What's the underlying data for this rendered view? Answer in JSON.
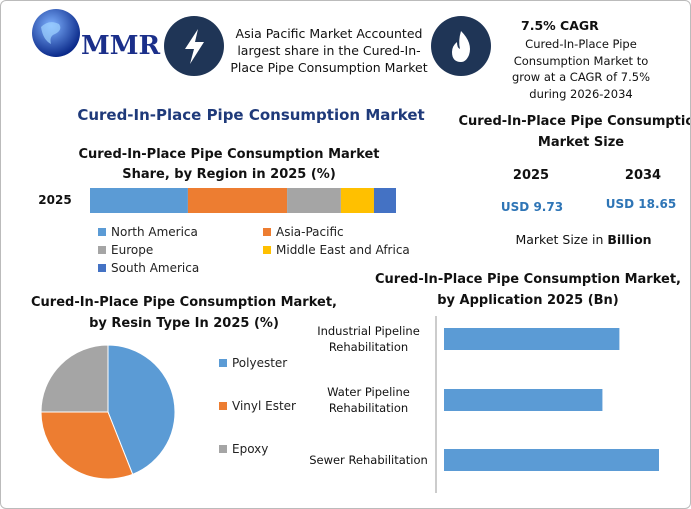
{
  "header": {
    "logo": "MMR",
    "callout_1": "Asia Pacific Market Accounted largest share in the Cured-In-Place Pipe Consumption Market",
    "callout_2_title": "7.5% CAGR",
    "callout_2": "Cured-In-Place Pipe Consumption Market to grow at a CAGR of 7.5% during 2026-2034"
  },
  "main_title": "Cured-In-Place Pipe Consumption Market",
  "market_size": {
    "title": "Cured-In-Place Pipe Consumption Market Size",
    "years": [
      "2025",
      "2034"
    ],
    "values": [
      "USD 9.73",
      "USD 18.65"
    ],
    "note": "Market Size in",
    "unit": "Billion"
  },
  "chart_data": [
    {
      "type": "stacked-bar",
      "title": "Cured-In-Place Pipe Consumption Market Share, by Region in 2025 (%)",
      "categories": [
        "2025"
      ],
      "series": [
        {
          "name": "North America",
          "color": "#5b9bd5",
          "values": [
            32
          ]
        },
        {
          "name": "Asia-Pacific",
          "color": "#ed7d31",
          "values": [
            32.4
          ]
        },
        {
          "name": "Europe",
          "color": "#a5a5a5",
          "values": [
            17.6
          ]
        },
        {
          "name": "Middle East and Africa",
          "color": "#ffc000",
          "values": [
            10.8
          ]
        },
        {
          "name": "South America",
          "color": "#4472c4",
          "values": [
            7.2
          ]
        }
      ]
    },
    {
      "type": "pie",
      "title": "Cured-In-Place Pipe Consumption Market, by Resin Type In 2025 (%)",
      "categories": [
        "Polyester",
        "Vinyl Ester",
        "Epoxy"
      ],
      "values": [
        44,
        31,
        25
      ],
      "colors": [
        "#5b9bd5",
        "#ed7d31",
        "#a5a5a5"
      ]
    },
    {
      "type": "hbar",
      "title": "Cured-In-Place Pipe Consumption Market, by Application 2025 (Bn)",
      "categories": [
        "Industrial Pipeline Rehabilitation",
        "Water Pipeline Rehabilitation",
        "Sewer Rehabilitation"
      ],
      "values": [
        3.1,
        2.8,
        3.8
      ],
      "color": "#5b9bd5"
    }
  ]
}
